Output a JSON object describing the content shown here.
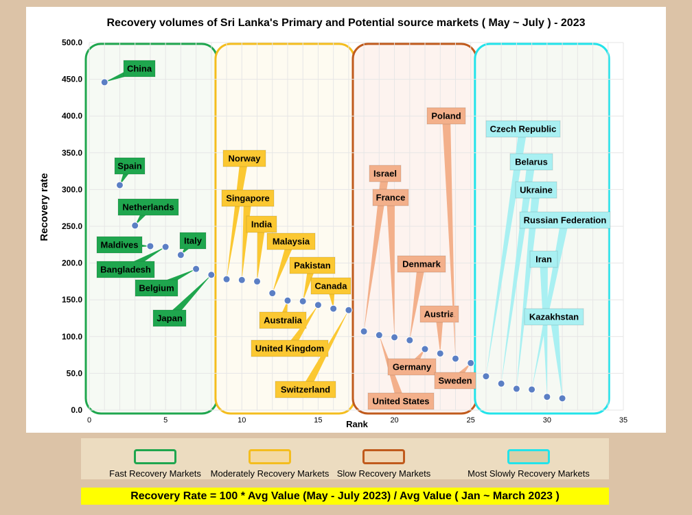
{
  "chart_data": {
    "type": "scatter",
    "title": "Recovery volumes of Sri Lanka's Primary and Potential source markets ( May ~ July ) - 2023",
    "xlabel": "Rank",
    "ylabel": "Recovery rate",
    "xlim": [
      0,
      35
    ],
    "ylim": [
      0,
      500
    ],
    "xticks": [
      "0",
      "5",
      "10",
      "15",
      "20",
      "25",
      "30",
      "35"
    ],
    "yticks": [
      "0.0",
      "50.0",
      "100.0",
      "150.0",
      "200.0",
      "250.0",
      "300.0",
      "350.0",
      "400.0",
      "450.0",
      "500.0"
    ],
    "grid": true,
    "point_color": "#5b7fc4",
    "groups": [
      {
        "name": "Fast Recovery Markets",
        "color": "#1fa64e",
        "fill": "#f6faf4",
        "label_bg": "#1fa64e",
        "x_range": [
          0,
          8.5
        ]
      },
      {
        "name": "Moderately Recovery Markets",
        "color": "#f4bd1e",
        "fill": "#fefbf1",
        "label_bg": "#fbc832",
        "x_range": [
          8.5,
          17.5
        ]
      },
      {
        "name": "Slow Recovery Markets",
        "color": "#c05a1c",
        "fill": "#fdf3ef",
        "label_bg": "#f3b08b",
        "x_range": [
          17.5,
          25.5
        ]
      },
      {
        "name": "Most Slowly Recovery Markets",
        "color": "#22e3ea",
        "fill": "#f6f9f3",
        "label_bg": "#a9f0f2",
        "x_range": [
          25.5,
          34.2
        ]
      }
    ],
    "points": [
      {
        "label": "China",
        "x": 1,
        "y": 446,
        "group": 0
      },
      {
        "label": "Spain",
        "x": 2,
        "y": 306,
        "group": 0
      },
      {
        "label": "Netherlands",
        "x": 3,
        "y": 251,
        "group": 0
      },
      {
        "label": "Maldives",
        "x": 4,
        "y": 223,
        "group": 0
      },
      {
        "label": "Bangladesh",
        "x": 5,
        "y": 222,
        "group": 0
      },
      {
        "label": "Italy",
        "x": 6,
        "y": 211,
        "group": 0
      },
      {
        "label": "Belgium",
        "x": 7,
        "y": 192,
        "group": 0
      },
      {
        "label": "Japan",
        "x": 8,
        "y": 184,
        "group": 0
      },
      {
        "label": "Norway",
        "x": 9,
        "y": 178,
        "group": 1
      },
      {
        "label": "Singapore",
        "x": 10,
        "y": 177,
        "group": 1
      },
      {
        "label": "India",
        "x": 11,
        "y": 175,
        "group": 1
      },
      {
        "label": "Malaysia",
        "x": 12,
        "y": 159,
        "group": 1
      },
      {
        "label": "Australia",
        "x": 13,
        "y": 149,
        "group": 1
      },
      {
        "label": "Pakistan",
        "x": 14,
        "y": 148,
        "group": 1
      },
      {
        "label": "United Kingdom",
        "x": 15,
        "y": 143,
        "group": 1
      },
      {
        "label": "Canada",
        "x": 16,
        "y": 138,
        "group": 1
      },
      {
        "label": "Switzerland",
        "x": 17,
        "y": 136,
        "group": 1
      },
      {
        "label": "Israel",
        "x": 18,
        "y": 107,
        "group": 2
      },
      {
        "label": "United States",
        "x": 19,
        "y": 102,
        "group": 2
      },
      {
        "label": "France",
        "x": 20,
        "y": 99,
        "group": 2
      },
      {
        "label": "Denmark",
        "x": 21,
        "y": 95,
        "group": 2
      },
      {
        "label": "Germany",
        "x": 22,
        "y": 83,
        "group": 2
      },
      {
        "label": "Austria",
        "x": 23,
        "y": 77,
        "group": 2
      },
      {
        "label": "Poland",
        "x": 24,
        "y": 70,
        "group": 2
      },
      {
        "label": "Sweden",
        "x": 25,
        "y": 64,
        "group": 2
      },
      {
        "label": "Czech Republic",
        "x": 26,
        "y": 46,
        "group": 3
      },
      {
        "label": "Belarus",
        "x": 27,
        "y": 36,
        "group": 3
      },
      {
        "label": "Ukraine",
        "x": 28,
        "y": 29,
        "group": 3
      },
      {
        "label": "Russian Federation",
        "x": 29,
        "y": 28,
        "group": 3
      },
      {
        "label": "Iran",
        "x": 30,
        "y": 18,
        "group": 3
      },
      {
        "label": "Kazakhstan",
        "x": 31,
        "y": 16,
        "group": 3
      }
    ]
  },
  "legend": {
    "items": [
      {
        "label": "Fast Recovery Markets",
        "border": "#1fa64e",
        "fill": "#ede3cf"
      },
      {
        "label": "Moderately Recovery Markets",
        "border": "#f4bd1e",
        "fill": "#f3d9a3"
      },
      {
        "label": "Slow Recovery Markets",
        "border": "#c05a1c",
        "fill": "#f0d6b3"
      },
      {
        "label": "Most Slowly Recovery Markets",
        "border": "#22e3ea",
        "fill": "#d9cfa8"
      }
    ]
  },
  "formula": "Recovery Rate = 100 * Avg Value (May - July 2023) / Avg Value ( Jan ~ March 2023 )"
}
